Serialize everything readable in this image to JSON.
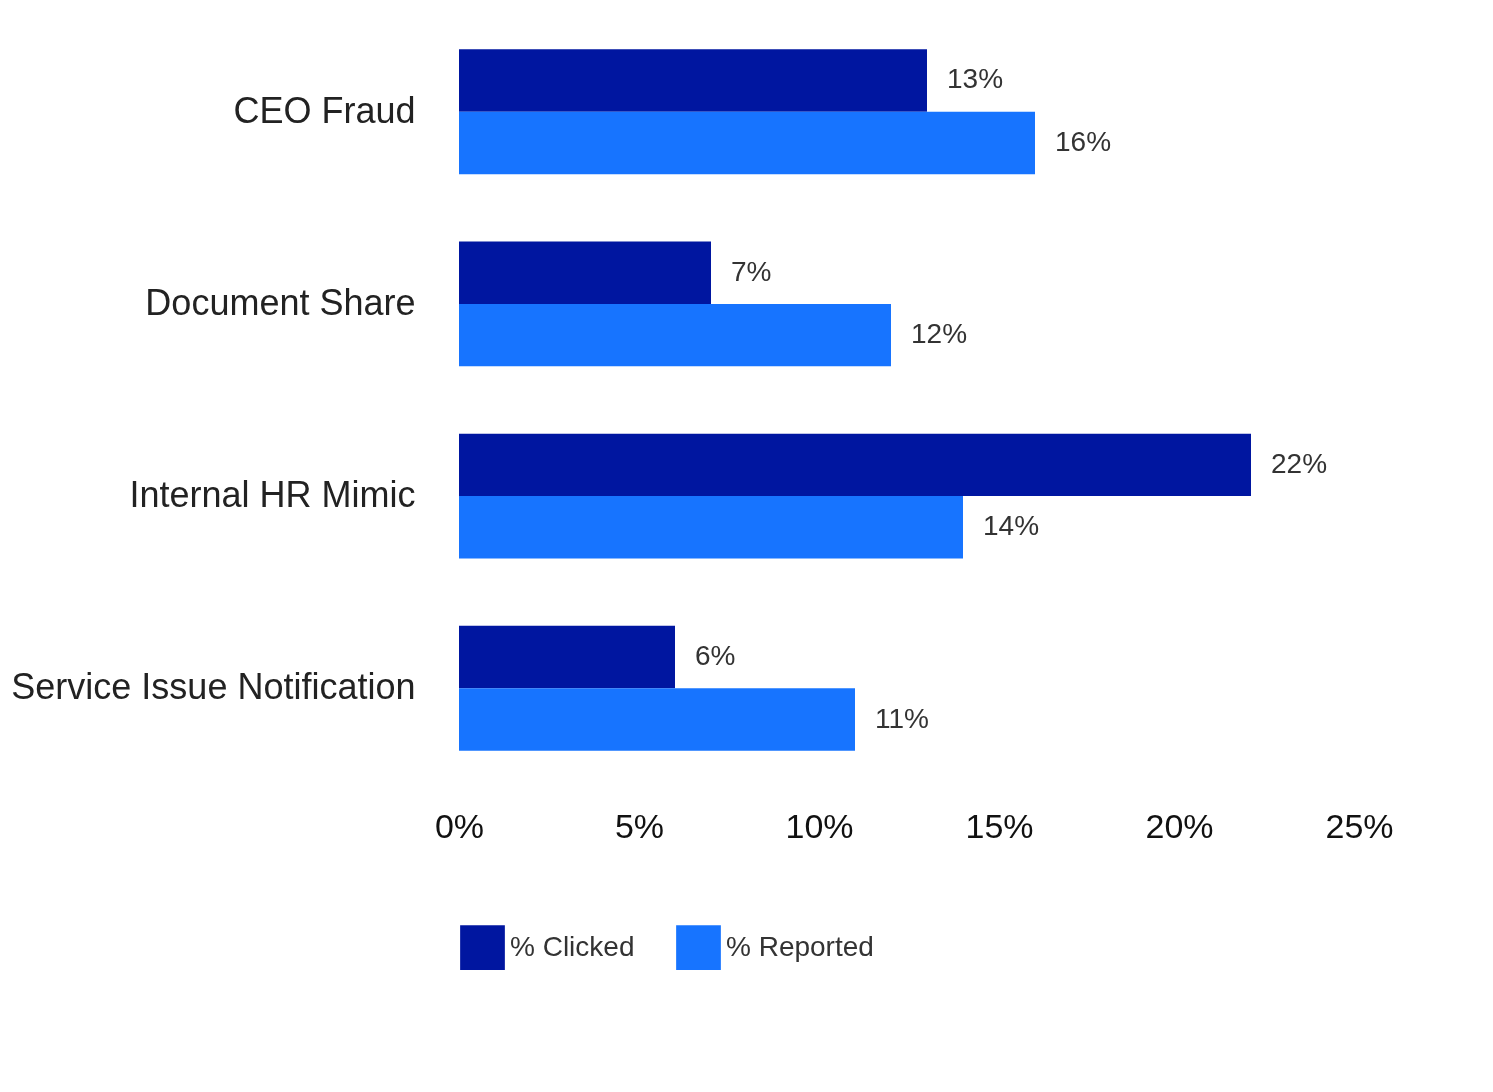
{
  "chart_data": {
    "type": "bar",
    "orientation": "horizontal",
    "categories": [
      "CEO Fraud",
      "Document Share",
      "Internal HR Mimic",
      "Service Issue Notification"
    ],
    "series": [
      {
        "name": "% Clicked",
        "color": "#0016a0",
        "values": [
          13,
          7,
          22,
          6
        ],
        "value_labels": [
          "13%",
          "7%",
          "22%",
          "6%"
        ]
      },
      {
        "name": "% Reported",
        "color": "#1774ff",
        "values": [
          16,
          12,
          14,
          11
        ],
        "value_labels": [
          "16%",
          "12%",
          "14%",
          "11%"
        ]
      }
    ],
    "xlim": [
      0,
      25
    ],
    "xticks": [
      {
        "value": 0,
        "label": "0%"
      },
      {
        "value": 5,
        "label": "5%"
      },
      {
        "value": 10,
        "label": "10%"
      },
      {
        "value": 15,
        "label": "15%"
      },
      {
        "value": 20,
        "label": "20%"
      },
      {
        "value": 25,
        "label": "25%"
      }
    ],
    "legend": "bottom"
  }
}
